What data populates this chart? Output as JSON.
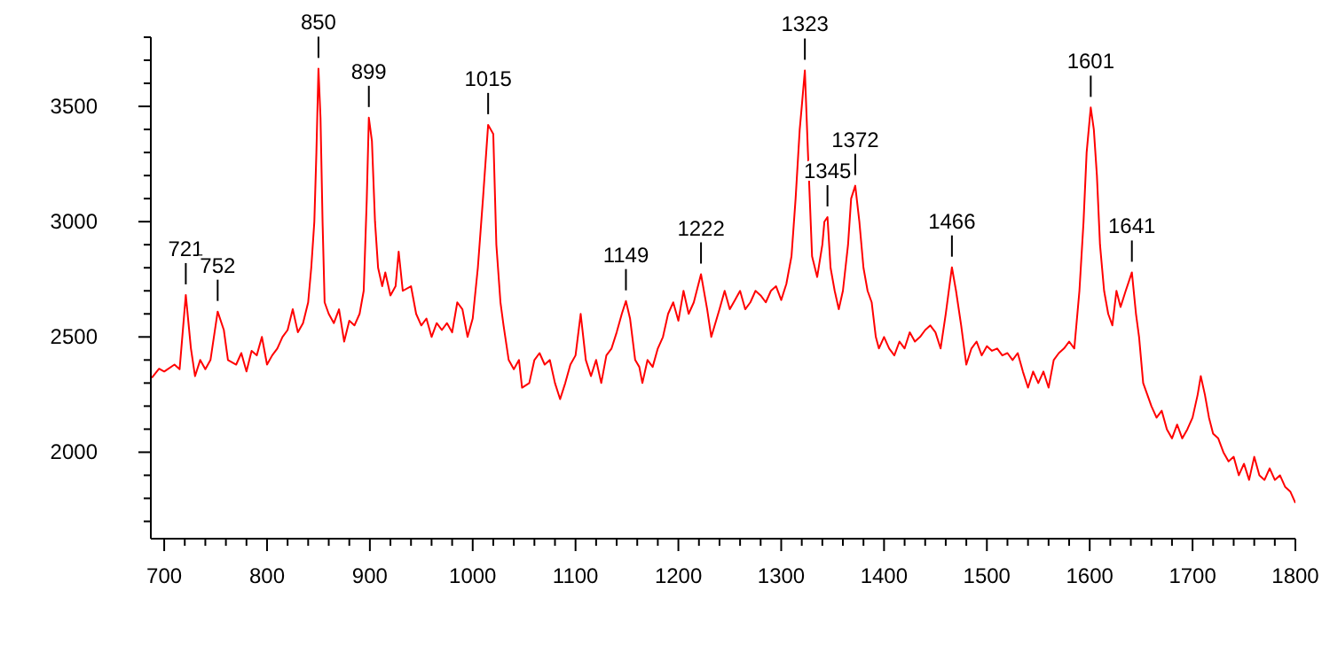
{
  "chart_data": {
    "type": "line",
    "color": "#ff0000",
    "marker": "none",
    "line_style": "solid",
    "xlim": [
      687,
      1800
    ],
    "xticks": [
      700,
      {
        "value": 720,
        "label": null
      },
      {
        "value": 740,
        "label": null
      },
      {
        "value": 760,
        "label": null
      },
      {
        "value": 780,
        "label": null
      },
      800,
      {
        "value": 820,
        "label": null
      },
      {
        "value": 840,
        "label": null
      },
      {
        "value": 860,
        "label": null
      },
      {
        "value": 880,
        "label": null
      },
      900,
      {
        "value": 920,
        "label": null
      },
      {
        "value": 940,
        "label": null
      },
      {
        "value": 960,
        "label": null
      },
      {
        "value": 980,
        "label": null
      },
      1000,
      {
        "value": 1020,
        "label": null
      },
      {
        "value": 1040,
        "label": null
      },
      {
        "value": 1060,
        "label": null
      },
      {
        "value": 1080,
        "label": null
      },
      1100,
      {
        "value": 1120,
        "label": null
      },
      {
        "value": 1140,
        "label": null
      },
      {
        "value": 1160,
        "label": null
      },
      {
        "value": 1180,
        "label": null
      },
      1200,
      {
        "value": 1220,
        "label": null
      },
      {
        "value": 1240,
        "label": null
      },
      {
        "value": 1260,
        "label": null
      },
      {
        "value": 1280,
        "label": null
      },
      1300,
      {
        "value": 1320,
        "label": null
      },
      {
        "value": 1340,
        "label": null
      },
      {
        "value": 1360,
        "label": null
      },
      {
        "value": 1380,
        "label": null
      },
      1400,
      {
        "value": 1420,
        "label": null
      },
      {
        "value": 1440,
        "label": null
      },
      {
        "value": 1460,
        "label": null
      },
      {
        "value": 1480,
        "label": null
      },
      1500,
      {
        "value": 1520,
        "label": null
      },
      {
        "value": 1540,
        "label": null
      },
      {
        "value": 1560,
        "label": null
      },
      {
        "value": 1580,
        "label": null
      },
      1600,
      {
        "value": 1620,
        "label": null
      },
      {
        "value": 1640,
        "label": null
      },
      {
        "value": 1660,
        "label": null
      },
      {
        "value": 1680,
        "label": null
      },
      1700,
      {
        "value": 1720,
        "label": null
      },
      {
        "value": 1740,
        "label": null
      },
      {
        "value": 1760,
        "label": null
      },
      {
        "value": 1780,
        "label": null
      },
      1800
    ],
    "ylim": [
      1625,
      3800
    ],
    "yticks": [
      {
        "value": 1700,
        "label": null
      },
      {
        "value": 1800,
        "label": null
      },
      {
        "value": 1900,
        "label": null
      },
      2000,
      {
        "value": 2100,
        "label": null
      },
      {
        "value": 2200,
        "label": null
      },
      {
        "value": 2300,
        "label": null
      },
      {
        "value": 2400,
        "label": null
      },
      2500,
      {
        "value": 2600,
        "label": null
      },
      {
        "value": 2700,
        "label": null
      },
      {
        "value": 2800,
        "label": null
      },
      {
        "value": 2900,
        "label": null
      },
      3000,
      {
        "value": 3100,
        "label": null
      },
      {
        "value": 3200,
        "label": null
      },
      {
        "value": 3300,
        "label": null
      },
      {
        "value": 3400,
        "label": null
      },
      3500,
      {
        "value": 3600,
        "label": null
      },
      {
        "value": 3700,
        "label": null
      },
      {
        "value": 3800,
        "label": null
      }
    ],
    "x": [
      688,
      695,
      700,
      710,
      715,
      721,
      726,
      730,
      735,
      740,
      745,
      752,
      758,
      762,
      770,
      775,
      780,
      785,
      790,
      795,
      800,
      805,
      810,
      815,
      820,
      825,
      830,
      835,
      840,
      843,
      846,
      848,
      850,
      852,
      854,
      856,
      860,
      865,
      870,
      875,
      880,
      885,
      890,
      894,
      897,
      899,
      902,
      905,
      908,
      912,
      915,
      920,
      925,
      928,
      932,
      940,
      945,
      950,
      955,
      960,
      965,
      970,
      975,
      980,
      985,
      990,
      995,
      1000,
      1005,
      1010,
      1015,
      1020,
      1023,
      1027,
      1030,
      1035,
      1040,
      1045,
      1048,
      1055,
      1060,
      1065,
      1070,
      1075,
      1080,
      1085,
      1090,
      1095,
      1100,
      1105,
      1110,
      1115,
      1120,
      1125,
      1130,
      1135,
      1140,
      1145,
      1149,
      1153,
      1158,
      1162,
      1165,
      1170,
      1175,
      1180,
      1185,
      1190,
      1195,
      1200,
      1205,
      1210,
      1215,
      1222,
      1228,
      1232,
      1240,
      1245,
      1250,
      1255,
      1260,
      1265,
      1270,
      1275,
      1280,
      1285,
      1290,
      1295,
      1300,
      1305,
      1310,
      1314,
      1318,
      1320,
      1323,
      1326,
      1330,
      1335,
      1340,
      1342,
      1345,
      1348,
      1352,
      1356,
      1360,
      1365,
      1368,
      1372,
      1376,
      1380,
      1384,
      1388,
      1392,
      1395,
      1400,
      1405,
      1410,
      1415,
      1420,
      1425,
      1430,
      1435,
      1440,
      1445,
      1450,
      1455,
      1460,
      1466,
      1470,
      1475,
      1480,
      1485,
      1490,
      1495,
      1500,
      1505,
      1510,
      1515,
      1520,
      1525,
      1530,
      1535,
      1540,
      1545,
      1550,
      1555,
      1560,
      1565,
      1570,
      1575,
      1580,
      1585,
      1590,
      1594,
      1597,
      1601,
      1604,
      1607,
      1610,
      1614,
      1618,
      1622,
      1626,
      1630,
      1635,
      1641,
      1645,
      1648,
      1652,
      1656,
      1660,
      1665,
      1670,
      1675,
      1680,
      1685,
      1690,
      1695,
      1700,
      1705,
      1708,
      1712,
      1716,
      1720,
      1725,
      1730,
      1735,
      1740,
      1745,
      1750,
      1755,
      1760,
      1765,
      1770,
      1775,
      1780,
      1785,
      1790,
      1795,
      1800
    ],
    "values": [
      2323,
      2362,
      2350,
      2380,
      2360,
      2682,
      2450,
      2330,
      2400,
      2360,
      2400,
      2610,
      2530,
      2400,
      2380,
      2430,
      2350,
      2440,
      2420,
      2500,
      2380,
      2420,
      2450,
      2500,
      2530,
      2620,
      2520,
      2560,
      2650,
      2800,
      3000,
      3300,
      3664,
      3450,
      3000,
      2650,
      2600,
      2560,
      2620,
      2480,
      2570,
      2550,
      2600,
      2700,
      3100,
      3451,
      3350,
      3000,
      2800,
      2720,
      2780,
      2680,
      2720,
      2870,
      2700,
      2720,
      2600,
      2550,
      2580,
      2500,
      2560,
      2530,
      2560,
      2520,
      2650,
      2620,
      2500,
      2580,
      2800,
      3100,
      3420,
      3380,
      2900,
      2650,
      2550,
      2400,
      2360,
      2400,
      2280,
      2300,
      2400,
      2430,
      2380,
      2400,
      2300,
      2230,
      2300,
      2380,
      2420,
      2600,
      2400,
      2330,
      2400,
      2300,
      2420,
      2450,
      2520,
      2600,
      2656,
      2580,
      2400,
      2370,
      2300,
      2400,
      2370,
      2450,
      2500,
      2600,
      2650,
      2570,
      2700,
      2600,
      2650,
      2772,
      2620,
      2500,
      2620,
      2700,
      2620,
      2660,
      2700,
      2620,
      2650,
      2700,
      2680,
      2650,
      2700,
      2720,
      2660,
      2730,
      2850,
      3100,
      3400,
      3500,
      3656,
      3300,
      2850,
      2760,
      2900,
      3000,
      3020,
      2800,
      2700,
      2620,
      2700,
      2900,
      3100,
      3156,
      3000,
      2800,
      2700,
      2650,
      2500,
      2450,
      2500,
      2450,
      2420,
      2480,
      2450,
      2520,
      2480,
      2500,
      2530,
      2550,
      2520,
      2450,
      2600,
      2802,
      2700,
      2550,
      2380,
      2450,
      2480,
      2420,
      2460,
      2440,
      2450,
      2420,
      2430,
      2400,
      2430,
      2350,
      2280,
      2350,
      2300,
      2350,
      2280,
      2400,
      2430,
      2450,
      2480,
      2450,
      2700,
      3000,
      3300,
      3495,
      3400,
      3200,
      2900,
      2700,
      2600,
      2550,
      2700,
      2630,
      2700,
      2780,
      2600,
      2500,
      2300,
      2250,
      2200,
      2150,
      2180,
      2100,
      2060,
      2120,
      2060,
      2100,
      2150,
      2250,
      2330,
      2250,
      2150,
      2080,
      2060,
      2000,
      1960,
      1980,
      1900,
      1950,
      1880,
      1980,
      1900,
      1880,
      1930,
      1880,
      1900,
      1850,
      1830,
      1780
    ],
    "annotations": [
      {
        "text": "721",
        "x": 721,
        "y": 2682
      },
      {
        "text": "752",
        "x": 752,
        "y": 2610
      },
      {
        "text": "850",
        "x": 850,
        "y": 3664
      },
      {
        "text": "899",
        "x": 899,
        "y": 3451
      },
      {
        "text": "1015",
        "x": 1015,
        "y": 3420
      },
      {
        "text": "1149",
        "x": 1149,
        "y": 2656
      },
      {
        "text": "1222",
        "x": 1222,
        "y": 2772
      },
      {
        "text": "1323",
        "x": 1323,
        "y": 3656
      },
      {
        "text": "1345",
        "x": 1345,
        "y": 3020
      },
      {
        "text": "1372",
        "x": 1372,
        "y": 3156
      },
      {
        "text": "1466",
        "x": 1466,
        "y": 2802
      },
      {
        "text": "1601",
        "x": 1601,
        "y": 3495
      },
      {
        "text": "1641",
        "x": 1641,
        "y": 2780
      }
    ]
  }
}
